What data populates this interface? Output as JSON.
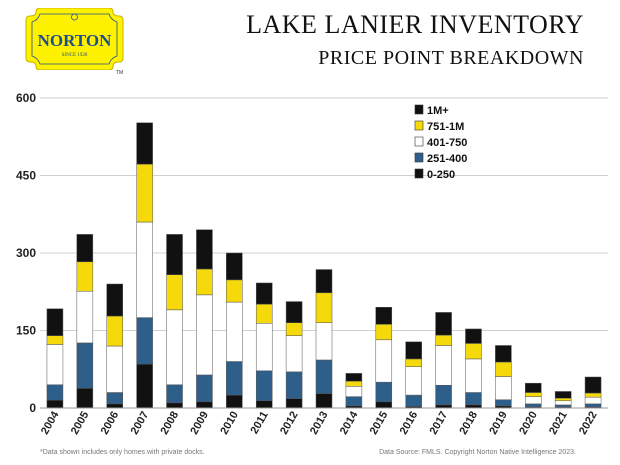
{
  "header": {
    "brand": "NORTON",
    "brand_since": "SINCE 1928",
    "trademark": "TM",
    "title_line1": "LAKE LANIER INVENTORY",
    "title_line2": "PRICE POINT BREAKDOWN"
  },
  "footer": {
    "note": "*Data shown includes only homes with private docks.",
    "source": "Data Source: FMLS. Copyright Norton Native Intelligence 2023."
  },
  "colors": {
    "brand_yellow": "#fff200",
    "brand_text": "#1e4d8c",
    "grid": "#d0d0d0"
  },
  "chart_data": {
    "type": "bar",
    "stacked": true,
    "categories": [
      "2004",
      "2005",
      "2006",
      "2007",
      "2008",
      "2009",
      "2010",
      "2011",
      "2012",
      "2013",
      "2014",
      "2015",
      "2016",
      "2017",
      "2018",
      "2019",
      "2020",
      "2021",
      "2022"
    ],
    "series": [
      {
        "name": "0-250",
        "color": "#111111",
        "values": [
          15,
          38,
          8,
          85,
          10,
          12,
          25,
          14,
          18,
          28,
          4,
          12,
          3,
          6,
          6,
          4,
          2,
          2,
          2
        ]
      },
      {
        "name": "251-400",
        "color": "#2e5f8a",
        "values": [
          30,
          88,
          22,
          90,
          35,
          52,
          65,
          58,
          52,
          65,
          18,
          38,
          22,
          38,
          24,
          12,
          6,
          4,
          6
        ]
      },
      {
        "name": "401-750",
        "color": "#ffffff",
        "values": [
          78,
          100,
          90,
          185,
          145,
          155,
          115,
          92,
          70,
          72,
          20,
          82,
          55,
          77,
          65,
          45,
          14,
          8,
          13
        ]
      },
      {
        "name": "751-1M",
        "color": "#f5d90a",
        "values": [
          17,
          57,
          58,
          112,
          68,
          50,
          43,
          37,
          25,
          58,
          10,
          30,
          15,
          20,
          30,
          28,
          8,
          5,
          8
        ]
      },
      {
        "name": "1M+",
        "color": "#111111",
        "values": [
          52,
          53,
          62,
          80,
          78,
          76,
          52,
          41,
          41,
          45,
          15,
          33,
          33,
          44,
          28,
          32,
          18,
          13,
          31
        ]
      }
    ],
    "legend_order": [
      "1M+",
      "751-1M",
      "401-750",
      "251-400",
      "0-250"
    ],
    "legend_position": "top-right",
    "xlabel": "",
    "ylabel": "",
    "ylim": [
      0,
      600
    ],
    "yticks": [
      0,
      150,
      300,
      450,
      600
    ],
    "grid": true
  }
}
